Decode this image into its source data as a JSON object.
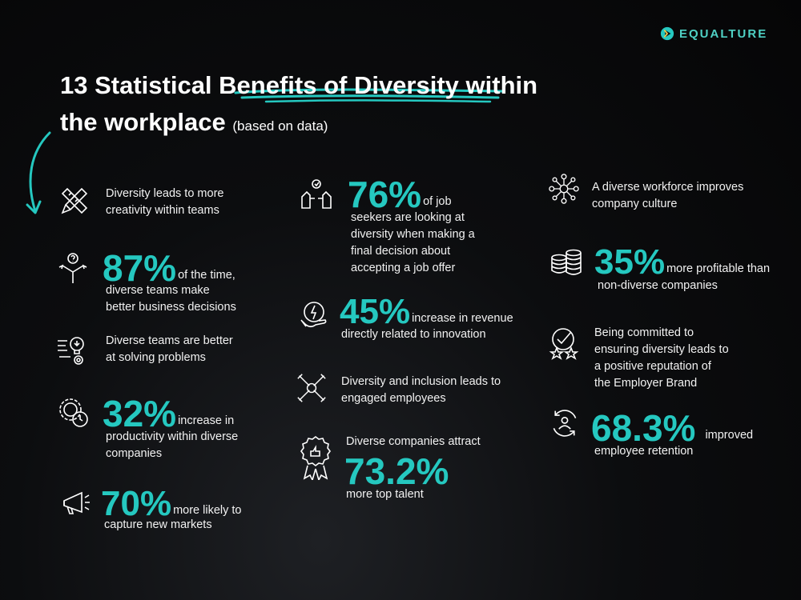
{
  "brand": {
    "name": "EQUALTURE",
    "accent": "#25c8c0"
  },
  "title": {
    "line1_start": "13 Statistical ",
    "line1_highlight": "Benefits of Diversity",
    "line1_end": " within",
    "line2": "the workplace",
    "subtitle": "(based on data)"
  },
  "stats": {
    "creativity": {
      "icon": "pencil-ruler-icon",
      "text_1": "Diversity leads to more",
      "text_2": "creativity within teams"
    },
    "decisions": {
      "icon": "decision-arrows-icon",
      "value": "87%",
      "tail": "of the time,",
      "text_1": "diverse teams make",
      "text_2": "better business decisions"
    },
    "problems": {
      "icon": "lightbulb-gear-icon",
      "text_1": "Diverse teams are better",
      "text_2": "at solving problems"
    },
    "productivity": {
      "icon": "clock-gear-icon",
      "value": "32%",
      "tail": "increase in",
      "text_1": "productivity within diverse",
      "text_2": "companies"
    },
    "markets": {
      "icon": "megaphone-icon",
      "value": "70%",
      "tail": "more likely to",
      "text_1": "capture new markets"
    },
    "job_seekers": {
      "icon": "hands-heart-icon",
      "value": "76%",
      "tail": "of job",
      "text_1": "seekers are looking at",
      "text_2": "diversity when making a",
      "text_3": "final decision about",
      "text_4": "accepting a job offer"
    },
    "revenue": {
      "icon": "brain-lightning-icon",
      "value": "45%",
      "tail": "increase in revenue",
      "text_1": "directly related to innovation"
    },
    "engagement": {
      "icon": "joined-hands-icon",
      "text_1": "Diversity and inclusion leads to",
      "text_2": "engaged employees"
    },
    "talent": {
      "icon": "award-badge-icon",
      "text_1": "Diverse companies attract",
      "value": "73.2%",
      "text_2": "more top talent"
    },
    "culture": {
      "icon": "network-people-icon",
      "text_1": "A diverse workforce improves",
      "text_2": "company culture"
    },
    "profit": {
      "icon": "coin-stack-icon",
      "value": "35%",
      "tail": "more profitable than",
      "text_1": "non-diverse companies"
    },
    "reputation": {
      "icon": "star-check-icon",
      "text_1": "Being committed to",
      "text_2": "ensuring diversity leads to",
      "text_3": "a positive reputation of",
      "text_4": "the Employer Brand"
    },
    "retention": {
      "icon": "person-cycle-icon",
      "value": "68.3%",
      "tail": "improved",
      "text_1": "employee retention"
    }
  }
}
